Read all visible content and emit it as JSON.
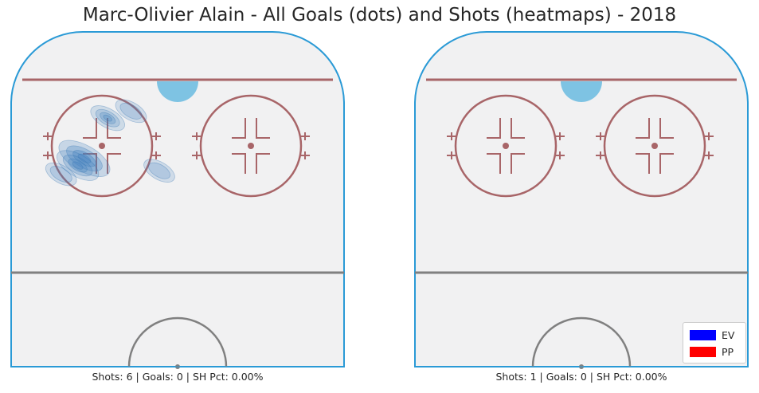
{
  "title": "Marc-Olivier Alain - All Goals (dots) and Shots (heatmaps) - 2018",
  "colors": {
    "ice": "#f1f1f2",
    "boards": "#2a9ad6",
    "red_line": "#a86568",
    "center_line": "#808080",
    "crease": "#7ec3e3",
    "heat": "#4a86c1",
    "ev": "#0000ff",
    "pp": "#ff0000"
  },
  "legend": [
    {
      "label": "EV",
      "color": "#0000ff"
    },
    {
      "label": "PP",
      "color": "#ff0000"
    }
  ],
  "chart_data": [
    {
      "type": "heatmap",
      "panel": "EV",
      "caption": "Shots: 6 | Goals: 0 | SH Pct: 0.00%",
      "shots": 6,
      "goals": 0,
      "sh_pct": "0.00%",
      "goal_points": [],
      "density_blobs": [
        {
          "x": -56,
          "y": 79,
          "level": 0.9
        },
        {
          "x": -60,
          "y": 83,
          "level": 0.6
        },
        {
          "x": -70,
          "y": 88,
          "level": 0.25
        },
        {
          "x": -11,
          "y": 86,
          "level": 0.25
        },
        {
          "x": -42,
          "y": 56,
          "level": 0.35
        },
        {
          "x": -28,
          "y": 52,
          "level": 0.25
        }
      ]
    },
    {
      "type": "heatmap",
      "panel": "PP",
      "caption": "Shots: 1 | Goals: 0 | SH Pct: 0.00%",
      "shots": 1,
      "goals": 0,
      "sh_pct": "0.00%",
      "goal_points": [],
      "density_blobs": []
    }
  ]
}
